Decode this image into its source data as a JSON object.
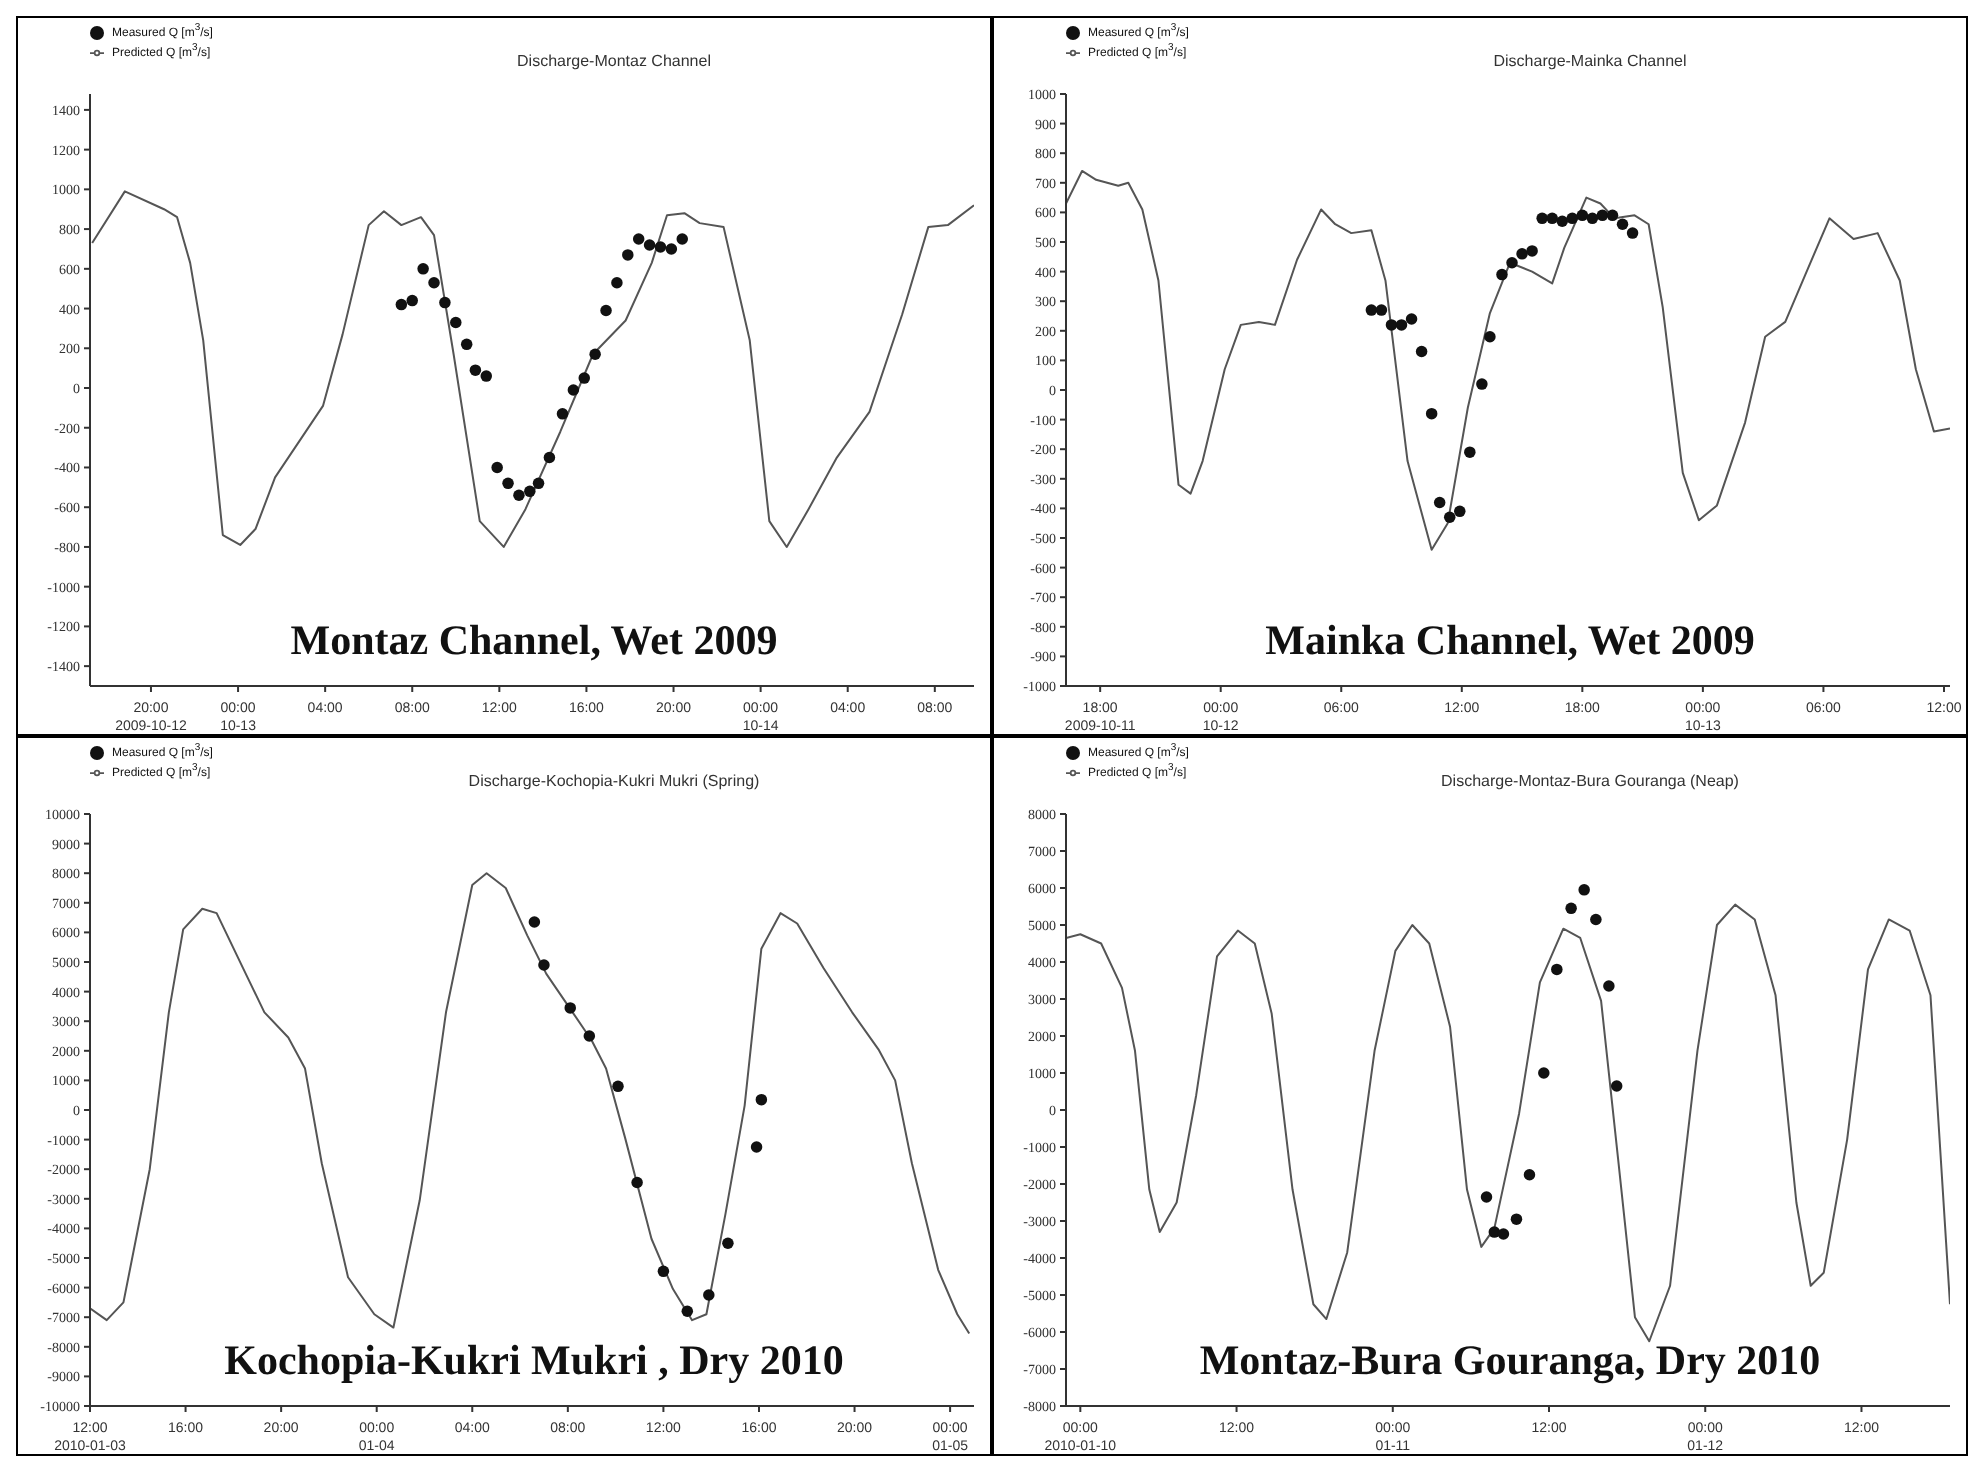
{
  "chart_data": [
    {
      "type": "line",
      "title": "Discharge-Montaz Channel",
      "legend": "top left",
      "annotations": [
        "Montaz Channel, Wet 2009"
      ],
      "xlim": [
        "2009-10-12T17:12",
        "2009-10-14T09:48"
      ],
      "xticks": [
        {
          "value": "2009-10-12T20:00",
          "label": "20:00\n2009-10-12"
        },
        {
          "value": "2009-10-13T00:00",
          "label": "00:00\n10-13"
        },
        {
          "value": "2009-10-13T04:00",
          "label": "04:00"
        },
        {
          "value": "2009-10-13T08:00",
          "label": "08:00"
        },
        {
          "value": "2009-10-13T12:00",
          "label": "12:00"
        },
        {
          "value": "2009-10-13T16:00",
          "label": "16:00"
        },
        {
          "value": "2009-10-13T20:00",
          "label": "20:00"
        },
        {
          "value": "2009-10-14T00:00",
          "label": "00:00\n10-14"
        },
        {
          "value": "2009-10-14T04:00",
          "label": "04:00"
        },
        {
          "value": "2009-10-14T08:00",
          "label": "08:00"
        }
      ],
      "ylim": [
        -1500,
        1480
      ],
      "yticks": [
        -1400,
        -1200,
        -1000,
        -800,
        -600,
        -400,
        -200,
        0,
        200,
        400,
        600,
        800,
        1000,
        1200,
        1400
      ],
      "series": [
        {
          "name": "Measured Q [m$^{3}$/s]",
          "type": "scatter",
          "marker": "circle",
          "color": "#111111",
          "x": [
            "2009-10-13T07:30",
            "2009-10-13T08:00",
            "2009-10-13T08:30",
            "2009-10-13T09:00",
            "2009-10-13T09:30",
            "2009-10-13T10:00",
            "2009-10-13T10:30",
            "2009-10-13T10:54",
            "2009-10-13T11:24",
            "2009-10-13T11:54",
            "2009-10-13T12:24",
            "2009-10-13T12:54",
            "2009-10-13T13:24",
            "2009-10-13T13:48",
            "2009-10-13T14:18",
            "2009-10-13T14:54",
            "2009-10-13T15:24",
            "2009-10-13T15:54",
            "2009-10-13T16:24",
            "2009-10-13T16:54",
            "2009-10-13T17:24",
            "2009-10-13T17:54",
            "2009-10-13T18:24",
            "2009-10-13T18:54",
            "2009-10-13T19:24",
            "2009-10-13T19:54",
            "2009-10-13T20:24"
          ],
          "values": [
            420,
            440,
            600,
            530,
            430,
            330,
            220,
            90,
            60,
            -400,
            -480,
            -540,
            -520,
            -480,
            -350,
            -130,
            -10,
            50,
            170,
            390,
            530,
            670,
            750,
            720,
            710,
            700,
            750
          ]
        },
        {
          "name": "Predicted Q [m$^{3}$/s]",
          "type": "line",
          "marker": "none",
          "color": "#555555",
          "x": [
            "2009-10-12T17:18",
            "2009-10-12T18:48",
            "2009-10-12T20:36",
            "2009-10-12T21:12",
            "2009-10-12T21:48",
            "2009-10-12T22:24",
            "2009-10-12T23:18",
            "2009-10-13T00:06",
            "2009-10-13T00:48",
            "2009-10-13T01:42",
            "2009-10-13T03:54",
            "2009-10-13T04:48",
            "2009-10-13T06:00",
            "2009-10-13T06:42",
            "2009-10-13T07:30",
            "2009-10-13T08:24",
            "2009-10-13T09:00",
            "2009-10-13T09:54",
            "2009-10-13T11:06",
            "2009-10-13T12:12",
            "2009-10-13T13:12",
            "2009-10-13T14:48",
            "2009-10-13T16:18",
            "2009-10-13T17:48",
            "2009-10-13T19:00",
            "2009-10-13T19:42",
            "2009-10-13T20:30",
            "2009-10-13T21:12",
            "2009-10-13T22:18",
            "2009-10-13T23:30",
            "2009-10-14T00:24",
            "2009-10-14T01:12",
            "2009-10-14T02:12",
            "2009-10-14T03:30",
            "2009-10-14T05:00",
            "2009-10-14T06:30",
            "2009-10-14T07:42",
            "2009-10-14T08:36",
            "2009-10-14T09:48"
          ],
          "values": [
            730,
            990,
            900,
            860,
            630,
            240,
            -740,
            -790,
            -710,
            -450,
            -90,
            270,
            820,
            890,
            820,
            860,
            770,
            170,
            -670,
            -800,
            -610,
            -220,
            170,
            340,
            630,
            870,
            880,
            830,
            810,
            240,
            -670,
            -800,
            -610,
            -350,
            -120,
            370,
            810,
            820,
            920
          ]
        }
      ]
    },
    {
      "type": "line",
      "title": "Discharge-Mainka Channel",
      "legend": "top left",
      "annotations": [
        "Mainka Channel, Wet 2009"
      ],
      "xlim": [
        "2009-10-11T16:18",
        "2009-10-13T12:18"
      ],
      "xticks": [
        {
          "value": "2009-10-11T18:00",
          "label": "18:00\n2009-10-11"
        },
        {
          "value": "2009-10-12T00:00",
          "label": "00:00\n10-12"
        },
        {
          "value": "2009-10-12T06:00",
          "label": "06:00"
        },
        {
          "value": "2009-10-12T12:00",
          "label": "12:00"
        },
        {
          "value": "2009-10-12T18:00",
          "label": "18:00"
        },
        {
          "value": "2009-10-13T00:00",
          "label": "00:00\n10-13"
        },
        {
          "value": "2009-10-13T06:00",
          "label": "06:00"
        },
        {
          "value": "2009-10-13T12:00",
          "label": "12:00"
        }
      ],
      "ylim": [
        -1000,
        1000
      ],
      "yticks": [
        -1000,
        -900,
        -800,
        -700,
        -600,
        -500,
        -400,
        -300,
        -200,
        -100,
        0,
        100,
        200,
        300,
        400,
        500,
        600,
        700,
        800,
        900,
        1000
      ],
      "series": [
        {
          "name": "Measured Q [m$^{3}$/s]",
          "type": "scatter",
          "marker": "circle",
          "color": "#111111",
          "x": [
            "2009-10-12T07:30",
            "2009-10-12T08:00",
            "2009-10-12T08:30",
            "2009-10-12T09:00",
            "2009-10-12T09:30",
            "2009-10-12T10:00",
            "2009-10-12T10:30",
            "2009-10-12T10:54",
            "2009-10-12T11:24",
            "2009-10-12T11:54",
            "2009-10-12T12:24",
            "2009-10-12T13:00",
            "2009-10-12T13:24",
            "2009-10-12T14:00",
            "2009-10-12T14:30",
            "2009-10-12T15:00",
            "2009-10-12T15:30",
            "2009-10-12T16:00",
            "2009-10-12T16:30",
            "2009-10-12T17:00",
            "2009-10-12T17:30",
            "2009-10-12T18:00",
            "2009-10-12T18:30",
            "2009-10-12T19:00",
            "2009-10-12T19:30",
            "2009-10-12T20:00",
            "2009-10-12T20:30"
          ],
          "values": [
            270,
            270,
            220,
            220,
            240,
            130,
            -80,
            -380,
            -430,
            -410,
            -210,
            20,
            180,
            390,
            430,
            460,
            470,
            580,
            580,
            570,
            580,
            590,
            580,
            590,
            590,
            560,
            530
          ]
        },
        {
          "name": "Predicted Q [m$^{3}$/s]",
          "type": "line",
          "marker": "none",
          "color": "#555555",
          "x": [
            "2009-10-11T16:18",
            "2009-10-11T17:06",
            "2009-10-11T17:48",
            "2009-10-11T18:54",
            "2009-10-11T19:24",
            "2009-10-11T20:06",
            "2009-10-11T20:54",
            "2009-10-11T21:54",
            "2009-10-11T22:30",
            "2009-10-11T23:06",
            "2009-10-12T00:12",
            "2009-10-12T01:00",
            "2009-10-12T01:54",
            "2009-10-12T02:42",
            "2009-10-12T03:48",
            "2009-10-12T05:00",
            "2009-10-12T05:42",
            "2009-10-12T06:30",
            "2009-10-12T07:30",
            "2009-10-12T08:12",
            "2009-10-12T09:18",
            "2009-10-12T10:30",
            "2009-10-12T11:18",
            "2009-10-12T12:18",
            "2009-10-12T13:24",
            "2009-10-12T14:24",
            "2009-10-12T15:30",
            "2009-10-12T16:30",
            "2009-10-12T17:06",
            "2009-10-12T18:12",
            "2009-10-12T18:54",
            "2009-10-12T19:36",
            "2009-10-12T20:36",
            "2009-10-12T21:18",
            "2009-10-12T22:00",
            "2009-10-12T23:00",
            "2009-10-12T23:48",
            "2009-10-13T00:42",
            "2009-10-13T02:06",
            "2009-10-13T03:06",
            "2009-10-13T04:06",
            "2009-10-13T05:06",
            "2009-10-13T06:18",
            "2009-10-13T07:30",
            "2009-10-13T08:42",
            "2009-10-13T09:48",
            "2009-10-13T10:36",
            "2009-10-13T11:30",
            "2009-10-13T12:18"
          ],
          "values": [
            630,
            740,
            710,
            690,
            700,
            610,
            370,
            -320,
            -350,
            -240,
            70,
            220,
            230,
            220,
            440,
            610,
            560,
            530,
            540,
            370,
            -240,
            -540,
            -450,
            -60,
            260,
            430,
            400,
            360,
            480,
            650,
            630,
            580,
            590,
            560,
            280,
            -280,
            -440,
            -390,
            -110,
            180,
            230,
            390,
            580,
            510,
            530,
            370,
            70,
            -140,
            -130
          ]
        }
      ]
    },
    {
      "type": "line",
      "title": "Discharge-Kochopia-Kukri Mukri (Spring)",
      "legend": "top left",
      "annotations": [
        "Kochopia-Kukri Mukri , Dry 2010"
      ],
      "xlim": [
        "2010-01-03T12:00",
        "2010-01-05T01:00"
      ],
      "xticks": [
        {
          "value": "2010-01-03T12:00",
          "label": "12:00\n2010-01-03"
        },
        {
          "value": "2010-01-03T16:00",
          "label": "16:00"
        },
        {
          "value": "2010-01-03T20:00",
          "label": "20:00"
        },
        {
          "value": "2010-01-04T00:00",
          "label": "00:00\n01-04"
        },
        {
          "value": "2010-01-04T04:00",
          "label": "04:00"
        },
        {
          "value": "2010-01-04T08:00",
          "label": "08:00"
        },
        {
          "value": "2010-01-04T12:00",
          "label": "12:00"
        },
        {
          "value": "2010-01-04T16:00",
          "label": "16:00"
        },
        {
          "value": "2010-01-04T20:00",
          "label": "20:00"
        },
        {
          "value": "2010-01-05T00:00",
          "label": "00:00\n01-05"
        }
      ],
      "ylim": [
        -10000,
        10000
      ],
      "yticks": [
        -10000,
        -9000,
        -8000,
        -7000,
        -6000,
        -5000,
        -4000,
        -3000,
        -2000,
        -1000,
        0,
        1000,
        2000,
        3000,
        4000,
        5000,
        6000,
        7000,
        8000,
        9000,
        10000
      ],
      "series": [
        {
          "name": "Measured Q [m$^{3}$/s]",
          "type": "scatter",
          "marker": "circle",
          "color": "#111111",
          "x": [
            "2010-01-04T06:36",
            "2010-01-04T07:00",
            "2010-01-04T08:06",
            "2010-01-04T08:54",
            "2010-01-04T10:06",
            "2010-01-04T10:54",
            "2010-01-04T12:00",
            "2010-01-04T13:00",
            "2010-01-04T13:54",
            "2010-01-04T14:42",
            "2010-01-04T15:54",
            "2010-01-04T16:06"
          ],
          "values": [
            6350,
            4900,
            3450,
            2500,
            800,
            -2450,
            -5450,
            -6800,
            -6250,
            -4500,
            -1250,
            350
          ]
        },
        {
          "name": "Predicted Q [m$^{3}$/s]",
          "type": "line",
          "marker": "none",
          "color": "#555555",
          "x": [
            "2010-01-03T12:00",
            "2010-01-03T12:42",
            "2010-01-03T13:24",
            "2010-01-03T14:30",
            "2010-01-03T15:18",
            "2010-01-03T15:54",
            "2010-01-03T16:42",
            "2010-01-03T17:18",
            "2010-01-03T18:24",
            "2010-01-03T19:18",
            "2010-01-03T20:18",
            "2010-01-03T21:00",
            "2010-01-03T21:42",
            "2010-01-03T22:48",
            "2010-01-03T23:54",
            "2010-01-04T00:42",
            "2010-01-04T01:48",
            "2010-01-04T02:54",
            "2010-01-04T04:00",
            "2010-01-04T04:36",
            "2010-01-04T05:24",
            "2010-01-04T06:18",
            "2010-01-04T07:06",
            "2010-01-04T08:12",
            "2010-01-04T09:00",
            "2010-01-04T09:36",
            "2010-01-04T10:24",
            "2010-01-04T11:30",
            "2010-01-04T12:24",
            "2010-01-04T13:12",
            "2010-01-04T13:48",
            "2010-01-04T14:36",
            "2010-01-04T15:24",
            "2010-01-04T16:06",
            "2010-01-04T16:54",
            "2010-01-04T17:36",
            "2010-01-04T18:42",
            "2010-01-04T19:54",
            "2010-01-04T21:00",
            "2010-01-04T21:42",
            "2010-01-04T22:24",
            "2010-01-04T23:30",
            "2010-01-05T00:18",
            "2010-01-05T00:48"
          ],
          "values": [
            -6700,
            -7100,
            -6500,
            -2000,
            3300,
            6100,
            6800,
            6650,
            4800,
            3300,
            2450,
            1400,
            -1800,
            -5650,
            -6900,
            -7350,
            -3050,
            3300,
            7600,
            8000,
            7500,
            5900,
            4600,
            3300,
            2350,
            1400,
            -950,
            -4350,
            -6050,
            -7100,
            -6900,
            -3500,
            150,
            5450,
            6650,
            6300,
            4800,
            3300,
            2050,
            1000,
            -1800,
            -5400,
            -6900,
            -7550
          ]
        }
      ]
    },
    {
      "type": "line",
      "title": "Discharge-Montaz-Bura Gouranga (Neap)",
      "legend": "top left",
      "annotations": [
        "Montaz-Bura Gouranga, Dry 2010"
      ],
      "xlim": [
        "2010-01-09T22:54",
        "2010-01-12T18:48"
      ],
      "xticks": [
        {
          "value": "2010-01-10T00:00",
          "label": "00:00\n2010-01-10"
        },
        {
          "value": "2010-01-10T12:00",
          "label": "12:00"
        },
        {
          "value": "2010-01-11T00:00",
          "label": "00:00\n01-11"
        },
        {
          "value": "2010-01-11T12:00",
          "label": "12:00"
        },
        {
          "value": "2010-01-12T00:00",
          "label": "00:00\n01-12"
        },
        {
          "value": "2010-01-12T12:00",
          "label": "12:00"
        }
      ],
      "ylim": [
        -8000,
        8000
      ],
      "yticks": [
        -8000,
        -7000,
        -6000,
        -5000,
        -4000,
        -3000,
        -2000,
        -1000,
        0,
        1000,
        2000,
        3000,
        4000,
        5000,
        6000,
        7000,
        8000
      ],
      "series": [
        {
          "name": "Measured Q [m$^{3}$/s]",
          "type": "scatter",
          "marker": "circle",
          "color": "#111111",
          "x": [
            "2010-01-11T07:12",
            "2010-01-11T07:48",
            "2010-01-11T08:30",
            "2010-01-11T09:30",
            "2010-01-11T10:30",
            "2010-01-11T11:36",
            "2010-01-11T12:36",
            "2010-01-11T13:42",
            "2010-01-11T14:42",
            "2010-01-11T15:36",
            "2010-01-11T16:36",
            "2010-01-11T17:12"
          ],
          "values": [
            -2350,
            -3300,
            -3350,
            -2950,
            -1750,
            1000,
            3800,
            5450,
            5950,
            5150,
            3350,
            650
          ]
        },
        {
          "name": "Predicted Q [m$^{3}$/s]",
          "type": "line",
          "marker": "none",
          "color": "#555555",
          "x": [
            "2010-01-09T22:54",
            "2010-01-10T00:00",
            "2010-01-10T01:36",
            "2010-01-10T03:12",
            "2010-01-10T04:12",
            "2010-01-10T05:18",
            "2010-01-10T06:06",
            "2010-01-10T07:24",
            "2010-01-10T08:54",
            "2010-01-10T10:30",
            "2010-01-10T12:06",
            "2010-01-10T13:24",
            "2010-01-10T14:42",
            "2010-01-10T16:18",
            "2010-01-10T17:54",
            "2010-01-10T18:54",
            "2010-01-10T20:30",
            "2010-01-10T22:36",
            "2010-01-11T00:12",
            "2010-01-11T01:30",
            "2010-01-11T02:48",
            "2010-01-11T04:24",
            "2010-01-11T05:42",
            "2010-01-11T06:48",
            "2010-01-11T07:48",
            "2010-01-11T09:42",
            "2010-01-11T11:18",
            "2010-01-11T13:06",
            "2010-01-11T14:24",
            "2010-01-11T16:00",
            "2010-01-11T17:18",
            "2010-01-11T18:36",
            "2010-01-11T19:42",
            "2010-01-11T21:18",
            "2010-01-11T23:24",
            "2010-01-12T00:54",
            "2010-01-12T02:18",
            "2010-01-12T03:48",
            "2010-01-12T05:24",
            "2010-01-12T07:00",
            "2010-01-12T08:06",
            "2010-01-12T09:06",
            "2010-01-12T10:54",
            "2010-01-12T12:30",
            "2010-01-12T14:06",
            "2010-01-12T15:42",
            "2010-01-12T17:18",
            "2010-01-12T18:48"
          ],
          "values": [
            4650,
            4750,
            4500,
            3300,
            1600,
            -2150,
            -3300,
            -2500,
            400,
            4150,
            4850,
            4500,
            2600,
            -2150,
            -5250,
            -5650,
            -3850,
            1600,
            4300,
            5000,
            4500,
            2250,
            -2150,
            -3700,
            -3200,
            -100,
            3450,
            4900,
            4650,
            2950,
            -1300,
            -5600,
            -6250,
            -4750,
            1600,
            5000,
            5550,
            5150,
            3100,
            -2500,
            -4750,
            -4400,
            -800,
            3800,
            5150,
            4850,
            3100,
            -5250
          ]
        }
      ]
    }
  ]
}
